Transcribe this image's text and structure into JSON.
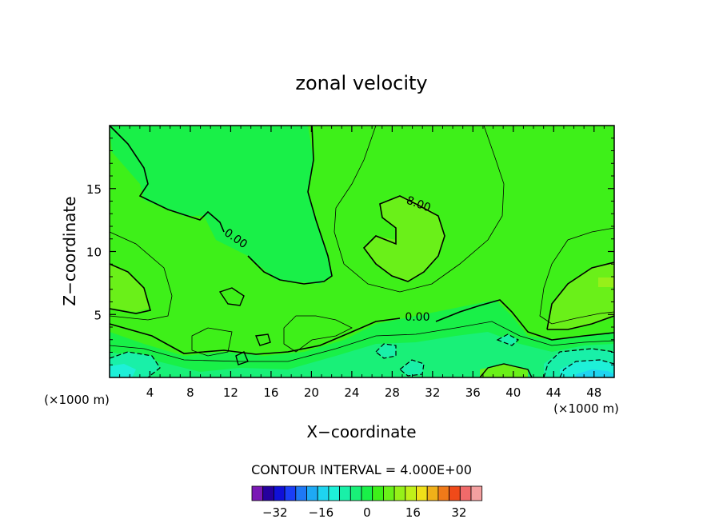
{
  "chart_data": {
    "type": "contour",
    "title": "zonal velocity",
    "xlabel": "X−coordinate",
    "ylabel": "Z−coordinate",
    "x_unit_label": "(×1000 m)",
    "xlim": [
      0,
      50
    ],
    "ylim": [
      0,
      20
    ],
    "x_ticks": [
      4,
      8,
      12,
      16,
      20,
      24,
      28,
      32,
      36,
      40,
      44,
      48
    ],
    "y_ticks": [
      5,
      10,
      15
    ],
    "contour_interval_text": "CONTOUR INTERVAL = 4.000E+00",
    "contour_interval": 4,
    "contour_labels": [
      {
        "text": "0.00",
        "x": 12.3,
        "y": 10.8
      },
      {
        "text": "8.00",
        "x": 30.5,
        "y": 13.5
      },
      {
        "text": "0.00",
        "x": 30.5,
        "y": 4.5
      }
    ],
    "colorbar": {
      "levels": [
        -40,
        -36,
        -32,
        -28,
        -24,
        -20,
        -16,
        -12,
        -8,
        -4,
        0,
        4,
        8,
        12,
        16,
        20,
        24,
        28,
        32,
        36,
        40
      ],
      "colors": [
        "#7a19b5",
        "#25009e",
        "#1010d8",
        "#1a3ef7",
        "#1e78f5",
        "#1ea9f5",
        "#1ed4f0",
        "#1ef0d8",
        "#19f0a8",
        "#19f078",
        "#19f048",
        "#3ef019",
        "#6af019",
        "#96f019",
        "#c0f019",
        "#f0e019",
        "#f0b019",
        "#f07a19",
        "#f04a19",
        "#f06a6a",
        "#f4a0a0"
      ],
      "tick_labels": [
        "−32",
        "−16",
        "0",
        "16",
        "32"
      ],
      "tick_values": [
        -32,
        -16,
        0,
        16,
        32
      ]
    },
    "approx_fields": {
      "background_level_range": [
        0,
        4
      ],
      "positive_max_region": {
        "x_range": [
          27,
          33
        ],
        "y_range": [
          9,
          14
        ],
        "level_range": [
          8,
          12
        ]
      },
      "negative_min_region": {
        "x_range": [
          44,
          50
        ],
        "y_range": [
          0,
          2
        ],
        "level_range": [
          -20,
          -12
        ]
      }
    }
  }
}
